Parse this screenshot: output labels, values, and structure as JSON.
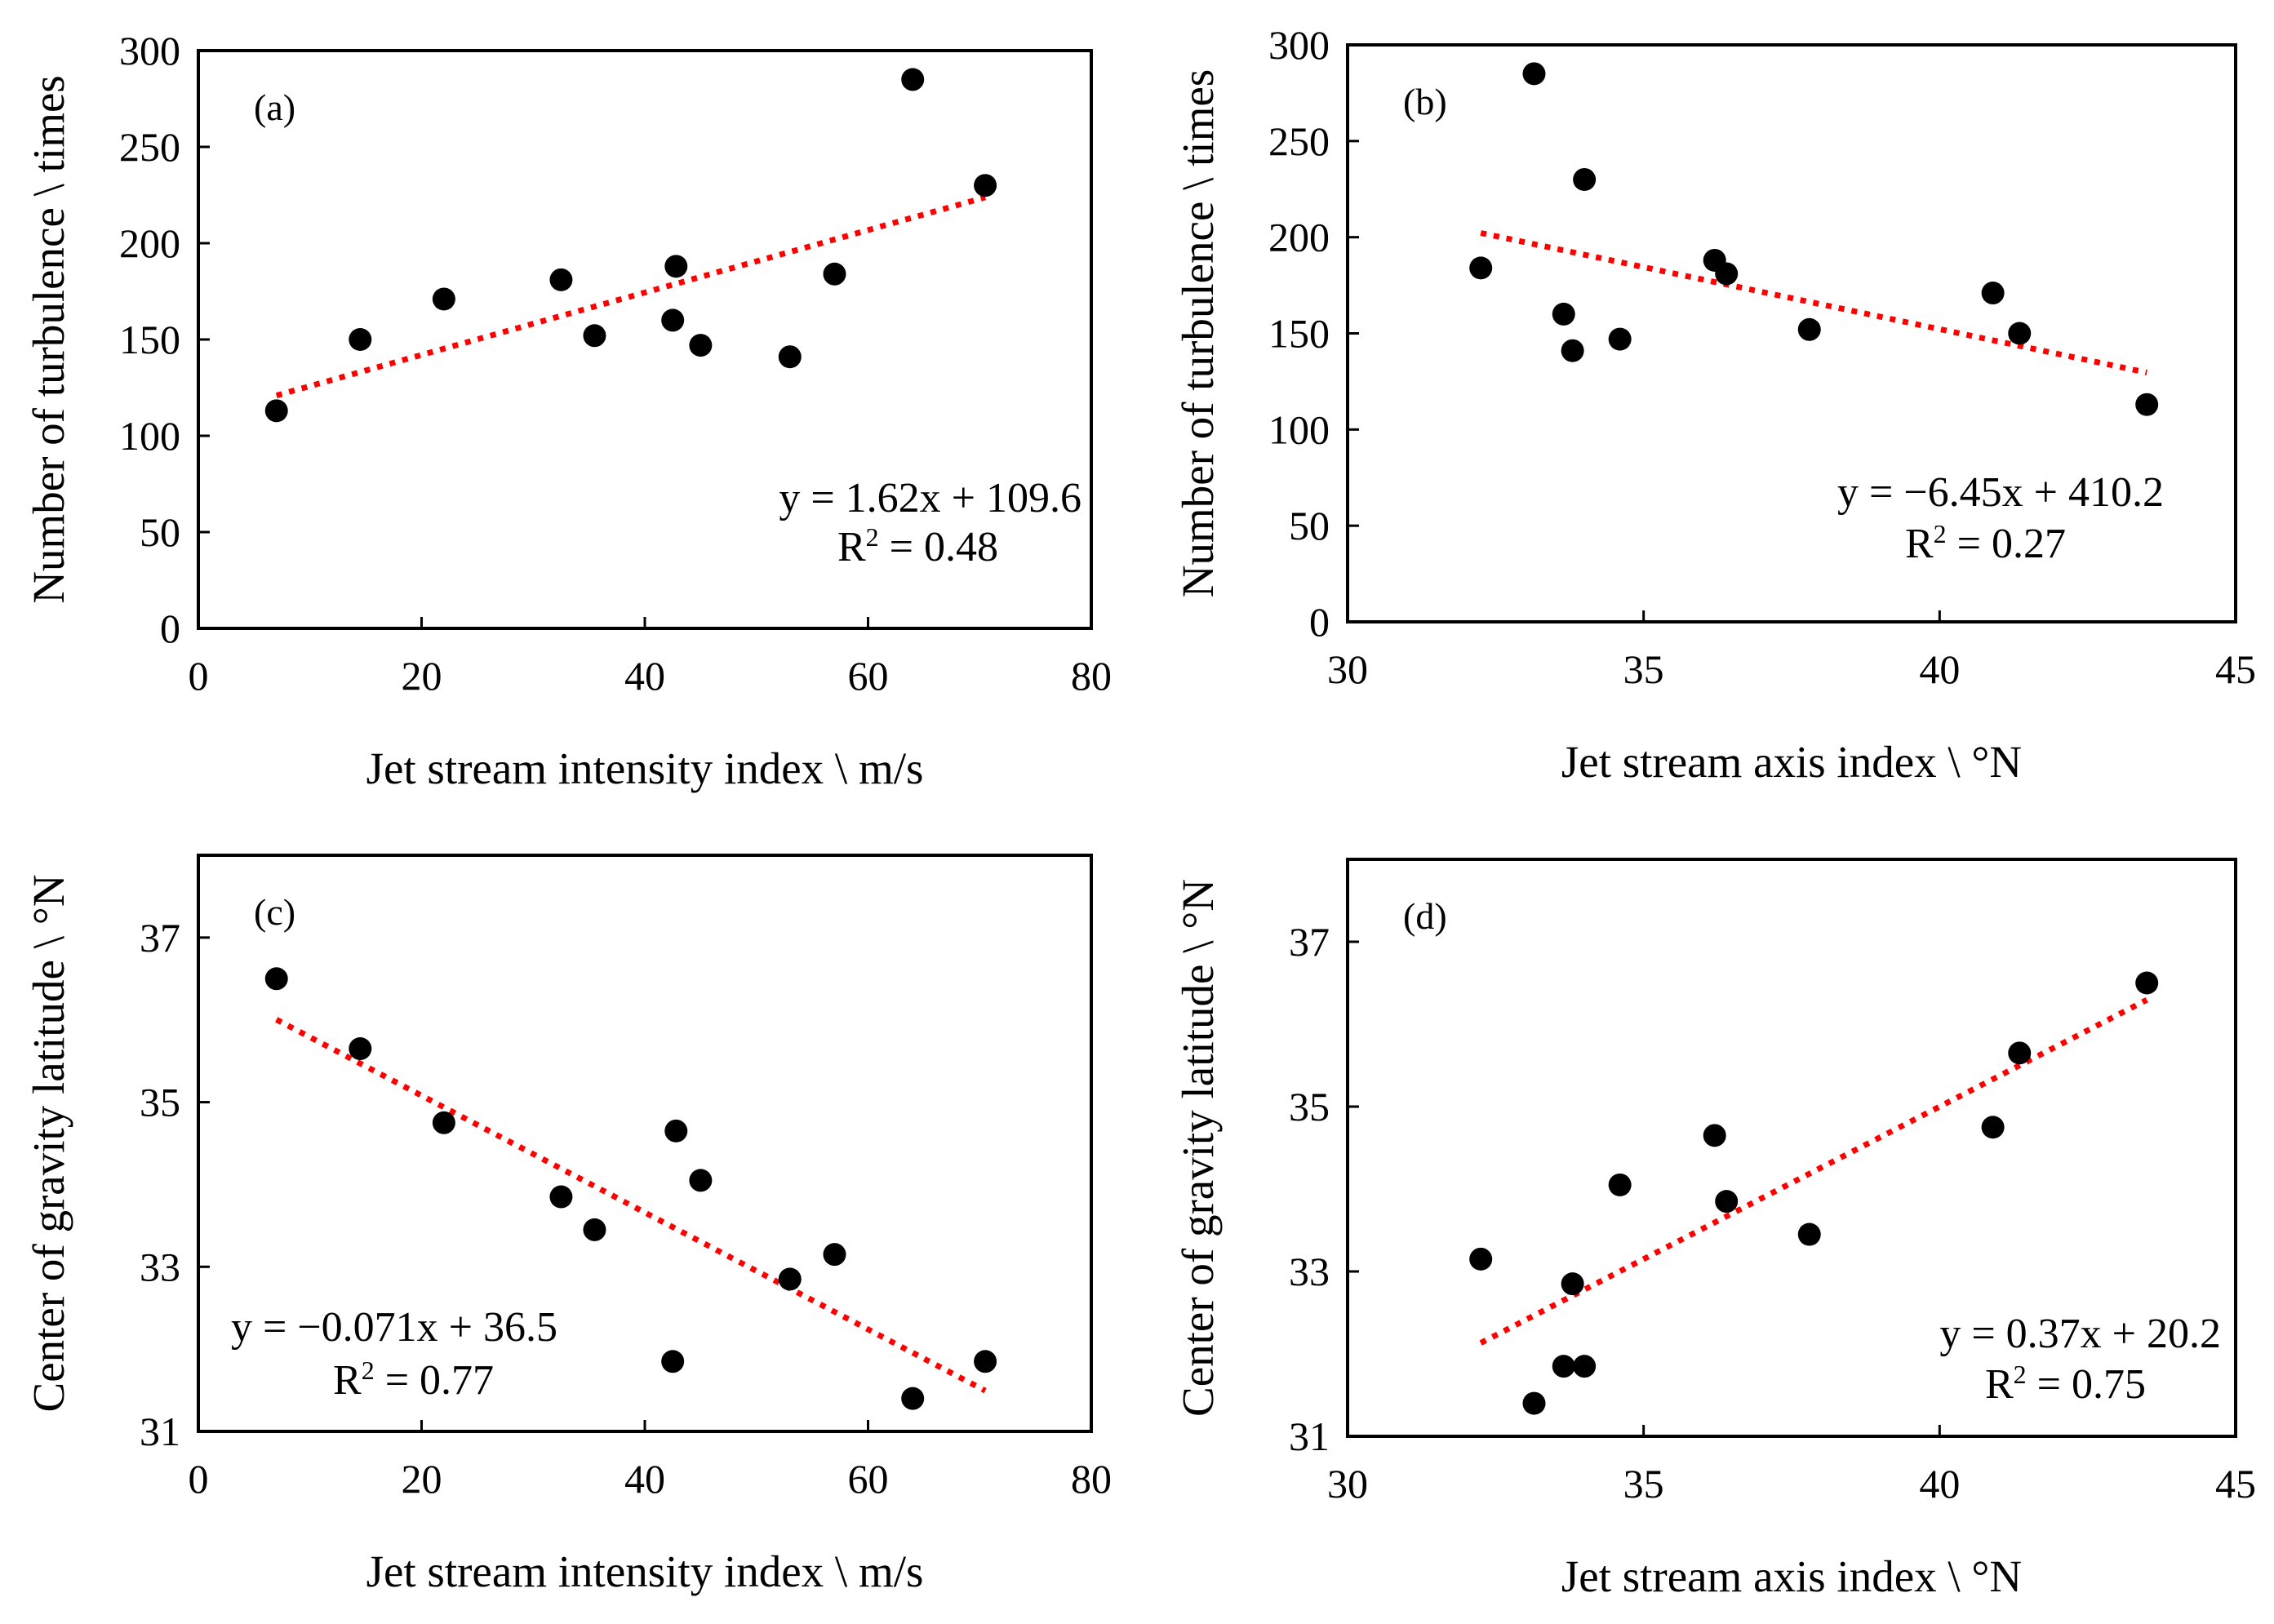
{
  "chart_data": [
    {
      "type": "scatter",
      "panel_label": "(a)",
      "xlabel": "Jet stream intensity index \\ m/s",
      "ylabel": "Number of turbulence \\ times",
      "xlim": [
        0,
        80
      ],
      "ylim": [
        0,
        300
      ],
      "xticks": [
        0,
        20,
        40,
        60,
        80
      ],
      "yticks": [
        0,
        50,
        100,
        150,
        200,
        250,
        300
      ],
      "points": [
        [
          7,
          113
        ],
        [
          14.5,
          150
        ],
        [
          22,
          171
        ],
        [
          32.5,
          181
        ],
        [
          35.5,
          152
        ],
        [
          42.5,
          160
        ],
        [
          42.8,
          188
        ],
        [
          45,
          147
        ],
        [
          53,
          141
        ],
        [
          57,
          184
        ],
        [
          64,
          285
        ],
        [
          70.5,
          230
        ]
      ],
      "trendline": {
        "slope": 1.62,
        "intercept": 109.6,
        "x_range": [
          7,
          70.5
        ],
        "color": "#ff0000"
      },
      "equation": "y = 1.62x + 109.6",
      "r2_label": "R",
      "r2_sup": "2",
      "r2_value": " = 0.48",
      "annotation_position": "bottom-right"
    },
    {
      "type": "scatter",
      "panel_label": "(b)",
      "xlabel": "Jet stream axis index \\ °N",
      "ylabel": "Number of turbulence \\ times",
      "xlim": [
        30,
        45
      ],
      "ylim": [
        0,
        300
      ],
      "xticks": [
        30,
        35,
        40,
        45
      ],
      "yticks": [
        0,
        50,
        100,
        150,
        200,
        250,
        300
      ],
      "points": [
        [
          32.25,
          184
        ],
        [
          33.15,
          285
        ],
        [
          33.65,
          160
        ],
        [
          33.8,
          141
        ],
        [
          34,
          230
        ],
        [
          34.6,
          147
        ],
        [
          36.2,
          188
        ],
        [
          36.4,
          181
        ],
        [
          37.8,
          152
        ],
        [
          40.9,
          171
        ],
        [
          41.35,
          150
        ],
        [
          43.5,
          113
        ]
      ],
      "trendline": {
        "slope": -6.45,
        "intercept": 410.2,
        "x_range": [
          32.25,
          43.5
        ],
        "color": "#ff0000"
      },
      "equation": "y = −6.45x + 410.2",
      "r2_label": "R",
      "r2_sup": "2",
      "r2_value": " = 0.27",
      "annotation_position": "bottom-right"
    },
    {
      "type": "scatter",
      "panel_label": "(c)",
      "xlabel": "Jet stream intensity index \\ m/s",
      "ylabel": "Center of gravity latitude \\ °N",
      "xlim": [
        0,
        80
      ],
      "ylim": [
        31,
        38
      ],
      "xticks": [
        0,
        20,
        40,
        60,
        80
      ],
      "yticks": [
        31,
        33,
        35,
        37
      ],
      "points": [
        [
          7,
          36.5
        ],
        [
          14.5,
          35.65
        ],
        [
          22,
          34.75
        ],
        [
          32.5,
          33.85
        ],
        [
          35.5,
          33.45
        ],
        [
          42.5,
          31.85
        ],
        [
          42.8,
          34.65
        ],
        [
          45,
          34.05
        ],
        [
          53,
          32.85
        ],
        [
          57,
          33.15
        ],
        [
          64,
          31.4
        ],
        [
          70.5,
          31.85
        ]
      ],
      "trendline": {
        "slope": -0.071,
        "intercept": 36.5,
        "x_range": [
          7,
          70.5
        ],
        "color": "#ff0000"
      },
      "equation": "y = −0.071x + 36.5",
      "r2_label": "R",
      "r2_sup": "2",
      "r2_value": " = 0.77",
      "annotation_position": "bottom-left"
    },
    {
      "type": "scatter",
      "panel_label": "(d)",
      "xlabel": "Jet stream axis index \\ °N",
      "ylabel": "Center of gravity latitude \\ °N",
      "xlim": [
        30,
        45
      ],
      "ylim": [
        31,
        38
      ],
      "xticks": [
        30,
        35,
        40,
        45
      ],
      "yticks": [
        31,
        33,
        35,
        37
      ],
      "points": [
        [
          32.25,
          33.15
        ],
        [
          33.15,
          31.4
        ],
        [
          33.65,
          31.85
        ],
        [
          33.8,
          32.85
        ],
        [
          34,
          31.85
        ],
        [
          34.6,
          34.05
        ],
        [
          36.2,
          34.65
        ],
        [
          36.4,
          33.85
        ],
        [
          37.8,
          33.45
        ],
        [
          40.9,
          34.75
        ],
        [
          41.35,
          35.65
        ],
        [
          43.5,
          36.5
        ]
      ],
      "trendline": {
        "slope": 0.37,
        "intercept": 20.2,
        "x_range": [
          32.25,
          43.5
        ],
        "color": "#ff0000"
      },
      "equation": "y = 0.37x + 20.2",
      "r2_label": "R",
      "r2_sup": "2",
      "r2_value": " = 0.75",
      "annotation_position": "bottom-right"
    }
  ]
}
